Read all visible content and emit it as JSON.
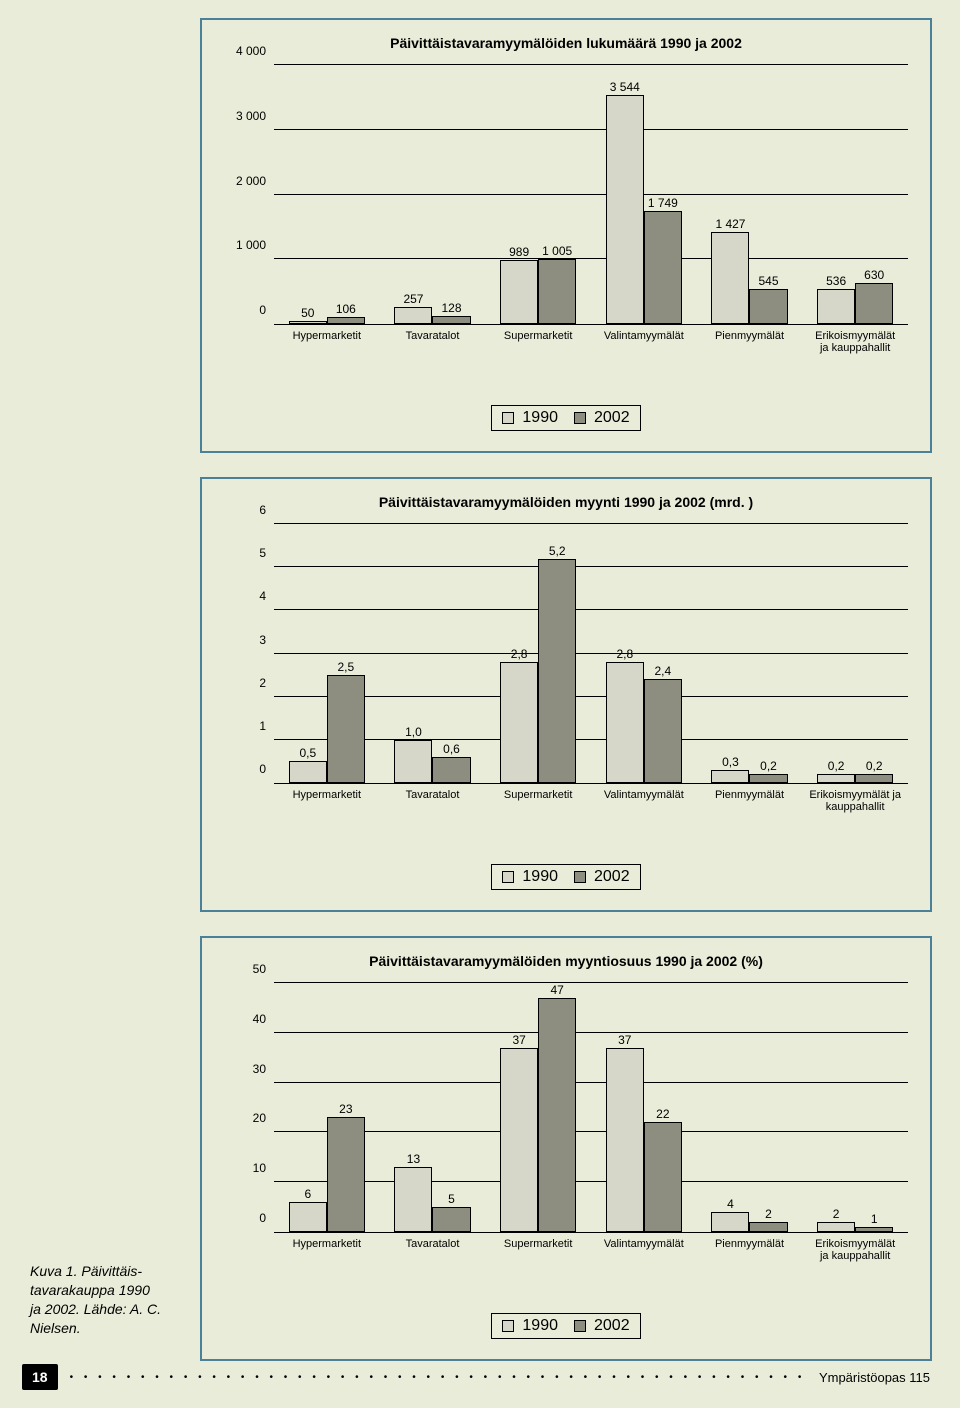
{
  "colors": {
    "series1990": "#d7d7c9",
    "series2002": "#8e8e80",
    "gridline": "#000000",
    "background": "#e8ecd8",
    "box_border": "#4a8098"
  },
  "categories": [
    "Hypermarketit",
    "Tavaratalot",
    "Supermarketit",
    "Valintamyymälät",
    "Pienmyymälät",
    "Erikoismyymälät\nja kauppahallit"
  ],
  "categories_alt": [
    "Hypermarketit",
    "Tavaratalot",
    "Supermarketit",
    "Valintamyymälät",
    "Pienmyymälät",
    "Erikoismyymälät ja\nkauppahallit"
  ],
  "chart1": {
    "title": "Päivittäistavaramyymälöiden lukumäärä 1990 ja 2002",
    "ymax": 4000,
    "ystep": 1000,
    "yticks_text": [
      "0",
      "1 000",
      "2 000",
      "3 000",
      "4 000"
    ],
    "val1990": [
      50,
      257,
      989,
      3544,
      1427,
      536
    ],
    "val2002": [
      106,
      128,
      1005,
      1749,
      545,
      630
    ],
    "labels1990": [
      "50",
      "257",
      "989",
      "3 544",
      "1 427",
      "536"
    ],
    "labels2002": [
      "106",
      "128",
      "1 005",
      "1 749",
      "545",
      "630"
    ]
  },
  "chart2": {
    "title": "Päivittäistavaramyymälöiden myynti 1990 ja 2002 (mrd.   )",
    "ymax": 6,
    "ystep": 1,
    "yticks_text": [
      "0",
      "1",
      "2",
      "3",
      "4",
      "5",
      "6"
    ],
    "val1990": [
      0.5,
      1.0,
      2.8,
      2.8,
      0.3,
      0.2
    ],
    "val2002": [
      2.5,
      0.6,
      5.2,
      2.4,
      0.2,
      0.2
    ],
    "labels1990": [
      "0,5",
      "1,0",
      "2,8",
      "2,8",
      "0,3",
      "0,2"
    ],
    "labels2002": [
      "2,5",
      "0,6",
      "5,2",
      "2,4",
      "0,2",
      "0,2"
    ]
  },
  "chart3": {
    "title": "Päivittäistavaramyymälöiden myyntiosuus 1990 ja 2002 (%)",
    "ymax": 50,
    "ystep": 10,
    "yticks_text": [
      "0",
      "10",
      "20",
      "30",
      "40",
      "50"
    ],
    "val1990": [
      6,
      13,
      37,
      37,
      4,
      2
    ],
    "val2002": [
      23,
      5,
      47,
      22,
      2,
      1
    ],
    "labels1990": [
      "6",
      "13",
      "37",
      "37",
      "4",
      "2"
    ],
    "labels2002": [
      "23",
      "5",
      "47",
      "22",
      "2",
      "1"
    ]
  },
  "legend": {
    "s1": "1990",
    "s2": "2002"
  },
  "caption": "Kuva 1. Päivittäis-\ntavarakauppa 1990\nja 2002. Lähde: A. C.\nNielsen.",
  "footer": {
    "page": "18",
    "text": "Ympäristöopas 115"
  }
}
